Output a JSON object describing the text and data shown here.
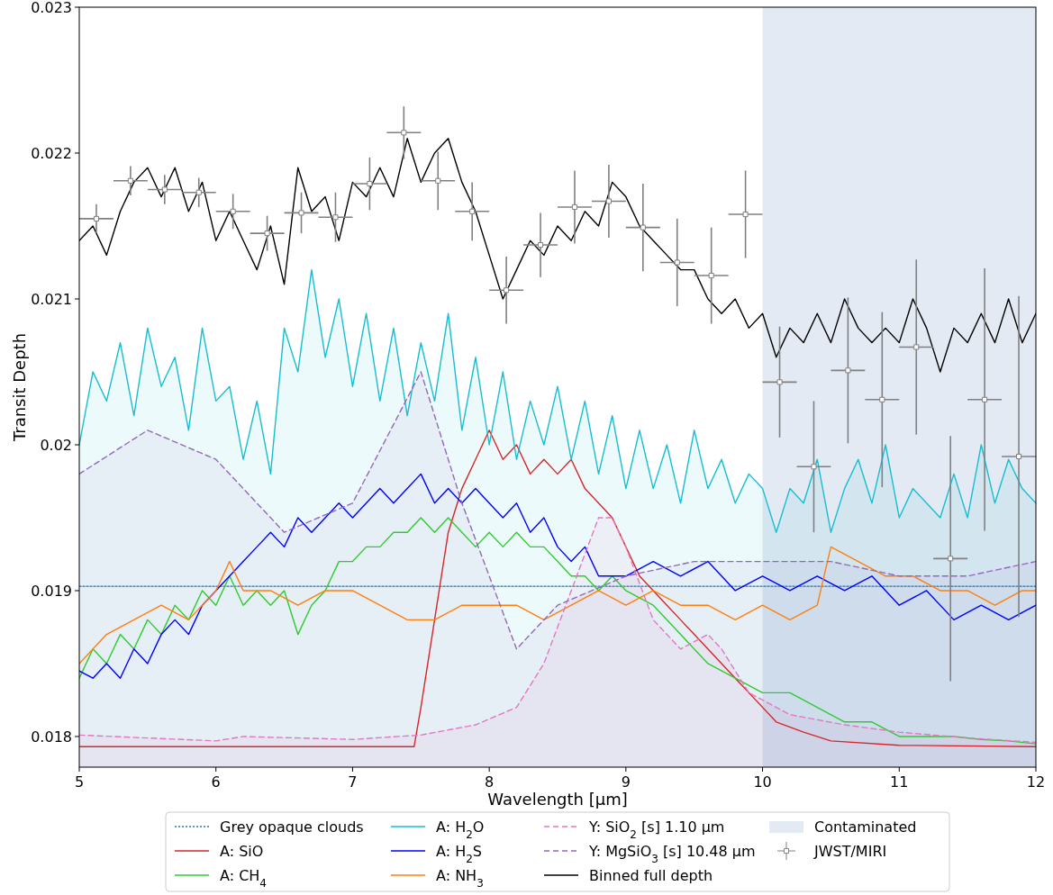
{
  "chart_data": {
    "type": "line",
    "xlabel": "Wavelength [µm]",
    "ylabel": "Transit Depth",
    "xlim": [
      5,
      12
    ],
    "xticks": [
      5,
      6,
      7,
      8,
      9,
      10,
      11,
      12
    ],
    "ylim": [
      0.01779,
      0.023
    ],
    "yticks": [
      0.018,
      0.019,
      0.02,
      0.021,
      0.022,
      0.023
    ],
    "legend": "bottom",
    "grid": false,
    "bands": [
      {
        "axis": "x",
        "from": 10,
        "to": 12,
        "label": "Contaminated",
        "color": "#e3eaf3"
      }
    ],
    "series": [
      {
        "name": "Grey opaque clouds",
        "color": "#1f77b4",
        "line_style": "dotted",
        "x": [
          5,
          12
        ],
        "values": [
          0.01903,
          0.01903
        ]
      },
      {
        "name": "A: SiO",
        "color": "#d62728",
        "line_style": "solid",
        "x": [
          5,
          6,
          7,
          7.45,
          7.5,
          7.6,
          7.7,
          7.8,
          7.9,
          8.0,
          8.1,
          8.2,
          8.3,
          8.4,
          8.5,
          8.6,
          8.7,
          8.8,
          8.9,
          9.0,
          9.1,
          9.2,
          9.3,
          9.4,
          9.5,
          9.6,
          9.7,
          9.8,
          9.9,
          10.1,
          10.3,
          10.5,
          11,
          12
        ],
        "values": [
          0.01793,
          0.01793,
          0.01793,
          0.01793,
          0.0182,
          0.0188,
          0.0194,
          0.0197,
          0.0199,
          0.0201,
          0.0199,
          0.02,
          0.0198,
          0.0199,
          0.0198,
          0.0199,
          0.0197,
          0.0196,
          0.0195,
          0.0193,
          0.0191,
          0.019,
          0.0189,
          0.0188,
          0.0187,
          0.0186,
          0.0185,
          0.0184,
          0.0183,
          0.0181,
          0.01803,
          0.01797,
          0.01794,
          0.01793
        ]
      },
      {
        "name": "A: CH$_{4}$",
        "color": "#2ecc2e",
        "line_style": "solid",
        "x": [
          5.0,
          5.1,
          5.2,
          5.3,
          5.4,
          5.5,
          5.6,
          5.7,
          5.8,
          5.9,
          6.0,
          6.1,
          6.2,
          6.3,
          6.4,
          6.5,
          6.6,
          6.7,
          6.8,
          6.9,
          7.0,
          7.1,
          7.2,
          7.3,
          7.4,
          7.5,
          7.6,
          7.7,
          7.8,
          7.9,
          8.0,
          8.1,
          8.2,
          8.3,
          8.4,
          8.5,
          8.6,
          8.7,
          8.8,
          8.9,
          9.0,
          9.2,
          9.4,
          9.6,
          9.8,
          10.0,
          10.2,
          10.4,
          10.6,
          10.8,
          11.0,
          11.2,
          11.4,
          11.6,
          11.8,
          12.0
        ],
        "values": [
          0.0184,
          0.0186,
          0.0185,
          0.0187,
          0.0186,
          0.0188,
          0.0187,
          0.0189,
          0.0188,
          0.019,
          0.0189,
          0.0191,
          0.0189,
          0.019,
          0.0189,
          0.019,
          0.0187,
          0.0189,
          0.019,
          0.0192,
          0.0192,
          0.0193,
          0.0193,
          0.0194,
          0.0194,
          0.0195,
          0.0194,
          0.0195,
          0.0194,
          0.0193,
          0.0194,
          0.0193,
          0.0194,
          0.0193,
          0.0193,
          0.0192,
          0.0191,
          0.0191,
          0.019,
          0.0191,
          0.019,
          0.0189,
          0.0187,
          0.0185,
          0.0184,
          0.0183,
          0.0183,
          0.0182,
          0.0181,
          0.0181,
          0.018,
          0.018,
          0.018,
          0.01798,
          0.01797,
          0.01795
        ]
      },
      {
        "name": "A: H$_{2}$O",
        "type": "area",
        "color": "#17becf",
        "line_style": "solid",
        "x": [
          5.0,
          5.1,
          5.2,
          5.3,
          5.4,
          5.5,
          5.6,
          5.7,
          5.8,
          5.9,
          6.0,
          6.1,
          6.2,
          6.3,
          6.4,
          6.5,
          6.6,
          6.7,
          6.8,
          6.9,
          7.0,
          7.1,
          7.2,
          7.3,
          7.4,
          7.5,
          7.6,
          7.7,
          7.8,
          7.9,
          8.0,
          8.1,
          8.2,
          8.3,
          8.4,
          8.5,
          8.6,
          8.7,
          8.8,
          8.9,
          9.0,
          9.1,
          9.2,
          9.3,
          9.4,
          9.5,
          9.6,
          9.7,
          9.8,
          9.9,
          10.0,
          10.1,
          10.2,
          10.3,
          10.4,
          10.5,
          10.6,
          10.7,
          10.8,
          10.9,
          11.0,
          11.1,
          11.2,
          11.3,
          11.4,
          11.5,
          11.6,
          11.7,
          11.8,
          11.9,
          12.0
        ],
        "values": [
          0.02,
          0.0205,
          0.0203,
          0.0207,
          0.0202,
          0.0208,
          0.0204,
          0.0206,
          0.0201,
          0.0208,
          0.0203,
          0.0204,
          0.0199,
          0.0203,
          0.0198,
          0.0208,
          0.0205,
          0.0212,
          0.0206,
          0.021,
          0.0204,
          0.0209,
          0.0203,
          0.0208,
          0.0202,
          0.0207,
          0.0203,
          0.0209,
          0.0201,
          0.0206,
          0.02,
          0.0205,
          0.0199,
          0.0203,
          0.02,
          0.0204,
          0.0199,
          0.0203,
          0.0198,
          0.0202,
          0.0197,
          0.0201,
          0.0197,
          0.02,
          0.0196,
          0.0201,
          0.0197,
          0.0199,
          0.0196,
          0.0198,
          0.0197,
          0.0194,
          0.0197,
          0.0196,
          0.0199,
          0.0194,
          0.0197,
          0.0199,
          0.0196,
          0.02,
          0.0195,
          0.0197,
          0.0196,
          0.0195,
          0.0198,
          0.0195,
          0.02,
          0.0196,
          0.0199,
          0.0197,
          0.0196
        ]
      },
      {
        "name": "A: H$_{2}$S",
        "color": "#0000ff",
        "line_style": "solid",
        "x": [
          5.0,
          5.1,
          5.2,
          5.3,
          5.4,
          5.5,
          5.6,
          5.7,
          5.8,
          5.9,
          6.0,
          6.1,
          6.2,
          6.3,
          6.4,
          6.5,
          6.6,
          6.7,
          6.8,
          6.9,
          7.0,
          7.1,
          7.2,
          7.3,
          7.4,
          7.5,
          7.6,
          7.7,
          7.8,
          7.9,
          8.0,
          8.1,
          8.2,
          8.3,
          8.4,
          8.5,
          8.6,
          8.7,
          8.8,
          9.0,
          9.2,
          9.4,
          9.6,
          9.8,
          10.0,
          10.2,
          10.4,
          10.6,
          10.8,
          11.0,
          11.2,
          11.4,
          11.6,
          11.8,
          12.0
        ],
        "values": [
          0.01845,
          0.0184,
          0.0185,
          0.0184,
          0.0186,
          0.0185,
          0.0187,
          0.0188,
          0.0187,
          0.0189,
          0.019,
          0.0191,
          0.0192,
          0.0193,
          0.0194,
          0.0193,
          0.0195,
          0.0194,
          0.0195,
          0.0196,
          0.0195,
          0.0196,
          0.0197,
          0.0196,
          0.0197,
          0.0198,
          0.0196,
          0.0197,
          0.0196,
          0.0197,
          0.0196,
          0.0195,
          0.0196,
          0.0194,
          0.0195,
          0.0193,
          0.0192,
          0.0193,
          0.0191,
          0.0191,
          0.0192,
          0.0191,
          0.0192,
          0.019,
          0.0191,
          0.019,
          0.0191,
          0.019,
          0.0191,
          0.0189,
          0.019,
          0.0188,
          0.0189,
          0.0188,
          0.0189
        ]
      },
      {
        "name": "A: NH$_{3}$",
        "color": "#ff7f0e",
        "line_style": "solid",
        "x": [
          5.0,
          5.2,
          5.4,
          5.6,
          5.8,
          6.0,
          6.1,
          6.2,
          6.4,
          6.6,
          6.8,
          7.0,
          7.2,
          7.4,
          7.6,
          7.8,
          8.0,
          8.2,
          8.4,
          8.6,
          8.8,
          9.0,
          9.2,
          9.4,
          9.6,
          9.8,
          10.0,
          10.2,
          10.4,
          10.5,
          10.7,
          10.9,
          11.1,
          11.3,
          11.5,
          11.7,
          11.9,
          12.0
        ],
        "values": [
          0.0185,
          0.0187,
          0.0188,
          0.0189,
          0.0188,
          0.019,
          0.0192,
          0.019,
          0.019,
          0.0189,
          0.019,
          0.019,
          0.0189,
          0.0188,
          0.0188,
          0.0189,
          0.0189,
          0.0189,
          0.0188,
          0.0189,
          0.019,
          0.0189,
          0.019,
          0.0189,
          0.0189,
          0.0188,
          0.0189,
          0.0188,
          0.0189,
          0.0193,
          0.0192,
          0.0191,
          0.0191,
          0.019,
          0.019,
          0.0189,
          0.019,
          0.019
        ]
      },
      {
        "name": "Y: SiO$_{2}$ [s] 1.10 µm",
        "type": "area",
        "color": "#e377c2",
        "line_style": "dashed",
        "x": [
          5.0,
          6.0,
          6.2,
          7.0,
          7.5,
          7.9,
          8.2,
          8.4,
          8.6,
          8.8,
          8.9,
          9.0,
          9.2,
          9.4,
          9.6,
          9.7,
          9.9,
          10.2,
          10.6,
          11.0,
          11.5,
          12.0
        ],
        "values": [
          0.01801,
          0.01797,
          0.018,
          0.01798,
          0.01801,
          0.01808,
          0.0182,
          0.0185,
          0.019,
          0.0195,
          0.0195,
          0.0193,
          0.0188,
          0.0186,
          0.0187,
          0.0186,
          0.0183,
          0.01815,
          0.01808,
          0.01803,
          0.01799,
          0.01796
        ]
      },
      {
        "name": "Y: MgSiO$_{3}$ [s] 10.48 µm",
        "type": "area",
        "color": "#9467bd",
        "line_style": "dashed",
        "x": [
          5.0,
          5.5,
          6.0,
          6.5,
          7.0,
          7.5,
          7.8,
          8.2,
          8.5,
          9.0,
          9.5,
          10.0,
          10.5,
          11.0,
          11.5,
          12.0
        ],
        "values": [
          0.0198,
          0.0201,
          0.0199,
          0.0194,
          0.0196,
          0.0205,
          0.0196,
          0.0186,
          0.0189,
          0.0191,
          0.0192,
          0.0192,
          0.0192,
          0.0191,
          0.0191,
          0.0192
        ]
      },
      {
        "name": "Binned full depth",
        "color": "#000000",
        "line_style": "solid",
        "x": [
          5.0,
          5.1,
          5.2,
          5.3,
          5.4,
          5.5,
          5.6,
          5.7,
          5.8,
          5.9,
          6.0,
          6.1,
          6.2,
          6.3,
          6.4,
          6.5,
          6.6,
          6.7,
          6.8,
          6.9,
          7.0,
          7.1,
          7.2,
          7.3,
          7.4,
          7.5,
          7.6,
          7.7,
          7.8,
          7.9,
          8.0,
          8.1,
          8.2,
          8.3,
          8.4,
          8.5,
          8.6,
          8.7,
          8.8,
          8.9,
          9.0,
          9.1,
          9.2,
          9.3,
          9.4,
          9.5,
          9.6,
          9.7,
          9.8,
          9.9,
          10.0,
          10.1,
          10.2,
          10.3,
          10.4,
          10.5,
          10.6,
          10.7,
          10.8,
          10.9,
          11.0,
          11.1,
          11.2,
          11.3,
          11.4,
          11.5,
          11.6,
          11.7,
          11.8,
          11.9,
          12.0
        ],
        "values": [
          0.0214,
          0.0215,
          0.0213,
          0.0216,
          0.0218,
          0.0219,
          0.0217,
          0.0219,
          0.0216,
          0.0218,
          0.0214,
          0.0216,
          0.0214,
          0.0212,
          0.0215,
          0.0211,
          0.0219,
          0.0216,
          0.0217,
          0.0214,
          0.0218,
          0.0217,
          0.0219,
          0.0217,
          0.0221,
          0.0218,
          0.022,
          0.0221,
          0.0218,
          0.0216,
          0.0213,
          0.021,
          0.0212,
          0.0214,
          0.0213,
          0.0215,
          0.0214,
          0.0216,
          0.0215,
          0.0218,
          0.0217,
          0.0215,
          0.0214,
          0.0213,
          0.0212,
          0.0212,
          0.021,
          0.0209,
          0.021,
          0.0208,
          0.0209,
          0.0206,
          0.0208,
          0.0207,
          0.0209,
          0.0207,
          0.021,
          0.0208,
          0.0207,
          0.0208,
          0.0207,
          0.021,
          0.0208,
          0.0205,
          0.0208,
          0.0207,
          0.0209,
          0.0207,
          0.021,
          0.0207,
          0.0209
        ]
      },
      {
        "name": "JWST/MIRI",
        "type": "scatter",
        "color": "#808080",
        "marker": "square",
        "x": [
          5.125,
          5.375,
          5.625,
          5.875,
          6.125,
          6.375,
          6.625,
          6.875,
          7.125,
          7.375,
          7.625,
          7.875,
          8.125,
          8.375,
          8.625,
          8.875,
          9.125,
          9.375,
          9.625,
          9.875,
          10.125,
          10.375,
          10.625,
          10.875,
          11.125,
          11.375,
          11.625,
          11.875
        ],
        "values": [
          0.02155,
          0.02181,
          0.02175,
          0.02173,
          0.0216,
          0.02145,
          0.02159,
          0.02156,
          0.02179,
          0.02214,
          0.02181,
          0.0216,
          0.02106,
          0.02137,
          0.02163,
          0.02167,
          0.02149,
          0.02125,
          0.02116,
          0.02158,
          0.02043,
          0.01985,
          0.02051,
          0.02031,
          0.02067,
          0.01922,
          0.02031,
          0.01992
        ],
        "errors": [
          0.0001,
          0.0001,
          0.0001,
          0.0001,
          0.00012,
          0.00012,
          0.00014,
          0.00017,
          0.00018,
          0.00018,
          0.0002,
          0.0002,
          0.00023,
          0.00022,
          0.00025,
          0.00025,
          0.0003,
          0.0003,
          0.00033,
          0.0003,
          0.00038,
          0.00045,
          0.0005,
          0.0006,
          0.0006,
          0.00084,
          0.0009,
          0.0011
        ],
        "xerrors": [
          0.125,
          0.125,
          0.125,
          0.125,
          0.125,
          0.125,
          0.125,
          0.125,
          0.125,
          0.125,
          0.125,
          0.125,
          0.125,
          0.125,
          0.125,
          0.125,
          0.125,
          0.125,
          0.125,
          0.125,
          0.125,
          0.125,
          0.125,
          0.125,
          0.125,
          0.125,
          0.125,
          0.125
        ]
      }
    ]
  }
}
